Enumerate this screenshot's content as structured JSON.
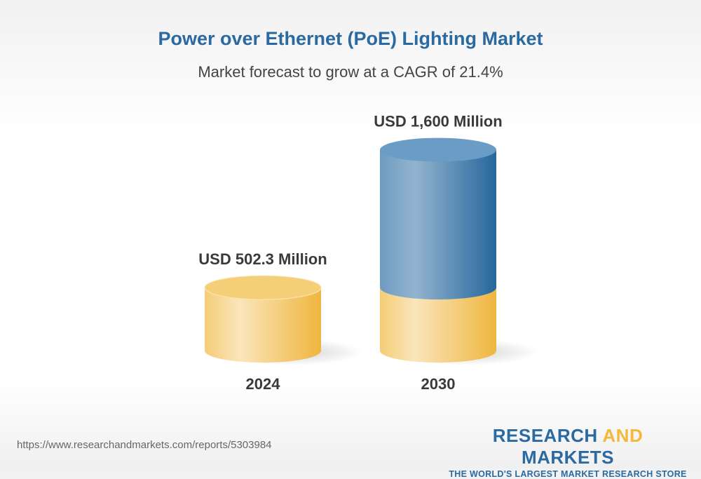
{
  "header": {
    "title": "Power over Ethernet (PoE) Lighting Market",
    "subtitle": "Market forecast to grow at a CAGR of 21.4%"
  },
  "chart_data": {
    "type": "bar",
    "style": "3d-cylinder",
    "categories": [
      "2024",
      "2030"
    ],
    "values": [
      502.3,
      1600
    ],
    "value_labels": [
      "USD 502.3 Million",
      "USD 1,600 Million"
    ],
    "unit": "USD Million",
    "cagr": "21.4%",
    "grid": false,
    "colors": {
      "base": "#f5cf78",
      "growth": "#2a6a9e"
    }
  },
  "footer": {
    "url": "https://www.researchandmarkets.com/reports/5303984",
    "logo_part1": "RESEARCH ",
    "logo_part2": "AND",
    "logo_part3": " MARKETS",
    "logo_tagline": "THE WORLD'S LARGEST MARKET RESEARCH STORE"
  }
}
